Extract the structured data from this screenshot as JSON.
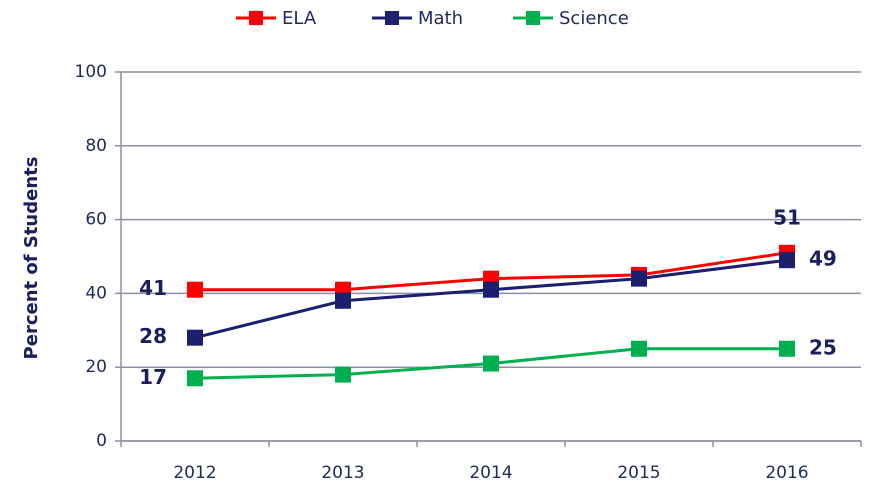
{
  "chart_data": {
    "type": "line",
    "y_label": "Percent of Students",
    "categories": [
      "2012",
      "2013",
      "2014",
      "2015",
      "2016"
    ],
    "series": [
      {
        "name": "ELA",
        "color": "#ff0000",
        "values": [
          41,
          41,
          44,
          45,
          51
        ]
      },
      {
        "name": "Math",
        "color": "#1a1f6e",
        "values": [
          28,
          38,
          41,
          44,
          49
        ]
      },
      {
        "name": "Science",
        "color": "#00b050",
        "values": [
          17,
          18,
          21,
          25,
          25
        ]
      }
    ],
    "ylim": [
      0,
      100
    ],
    "yticks": [
      0,
      20,
      40,
      60,
      80,
      100
    ],
    "grid": true,
    "legend": "top"
  }
}
